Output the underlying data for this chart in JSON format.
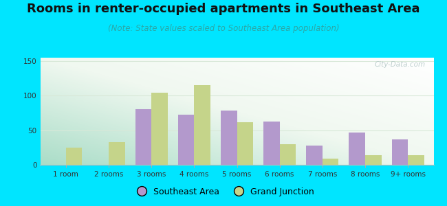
{
  "title": "Rooms in renter-occupied apartments in Southeast Area",
  "subtitle": "(Note: State values scaled to Southeast Area population)",
  "categories": [
    "1 room",
    "2 rooms",
    "3 rooms",
    "4 rooms",
    "5 rooms",
    "6 rooms",
    "7 rooms",
    "8 rooms",
    "9+ rooms"
  ],
  "southeast_values": [
    0,
    0,
    80,
    73,
    78,
    63,
    28,
    47,
    37
  ],
  "grand_junction_values": [
    25,
    33,
    104,
    115,
    62,
    30,
    9,
    14,
    14
  ],
  "southeast_color": "#b399cc",
  "grand_junction_color": "#c5d48a",
  "ylim": [
    0,
    155
  ],
  "yticks": [
    0,
    50,
    100,
    150
  ],
  "background_outer": "#00e5ff",
  "grid_color": "#d8e8d8",
  "watermark": "City-Data.com",
  "bar_width": 0.38,
  "title_fontsize": 13,
  "subtitle_fontsize": 8.5,
  "tick_fontsize": 7.5,
  "legend_fontsize": 9,
  "title_color": "#111111",
  "subtitle_color": "#2aa8a8",
  "tick_color": "#333333"
}
